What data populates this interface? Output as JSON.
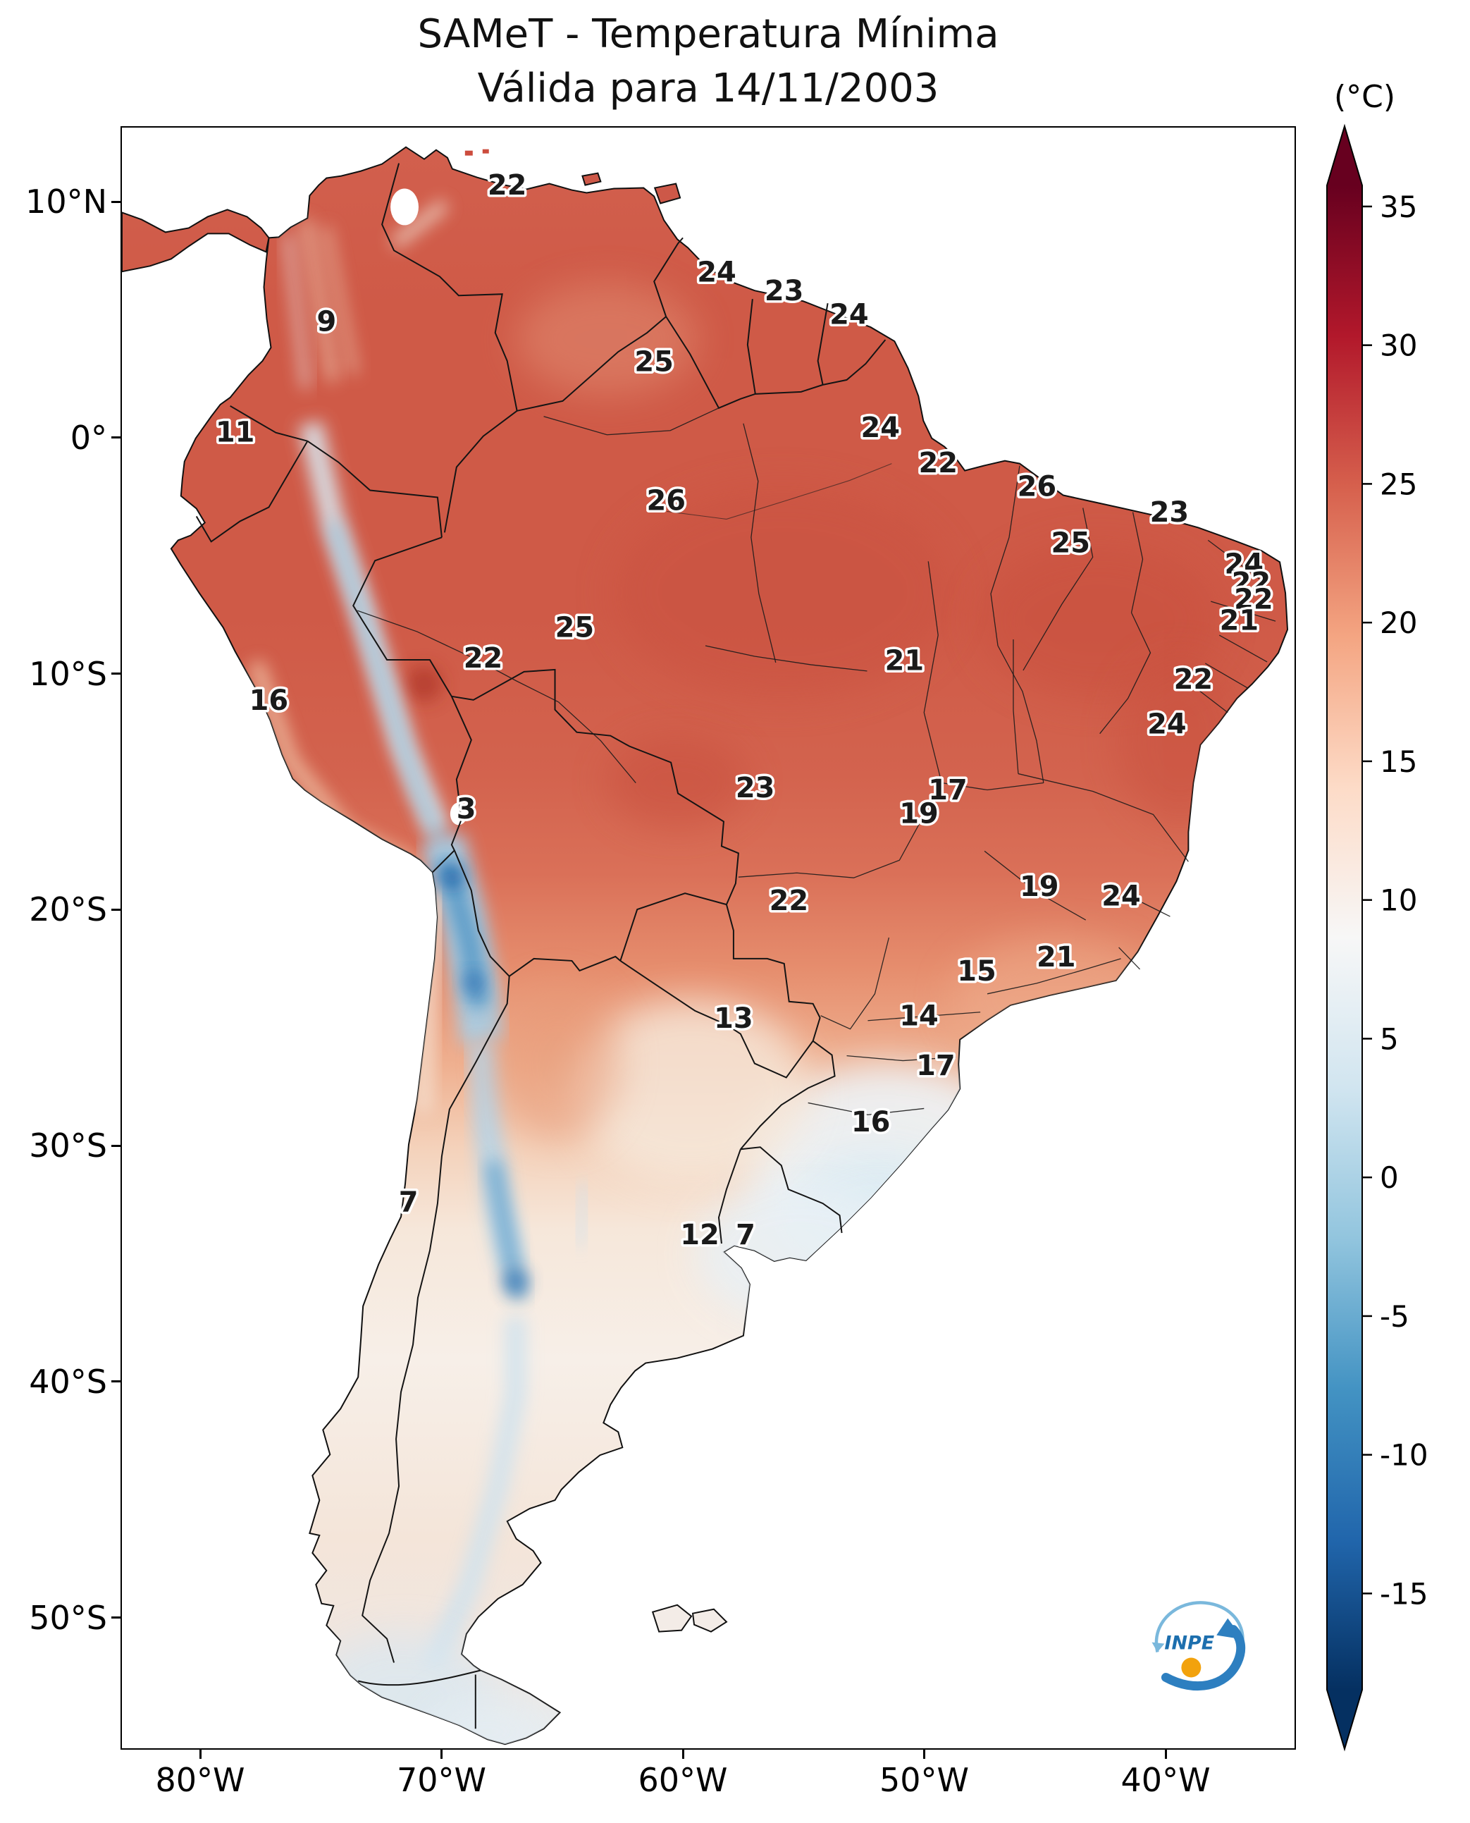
{
  "title": {
    "line1": "SAMeT - Temperatura Mínima",
    "line2": "Válida para 14/11/2003"
  },
  "colorbar": {
    "unit_label": "(°C)",
    "ticks": [
      35,
      30,
      25,
      20,
      15,
      10,
      5,
      0,
      -5,
      -10,
      -15
    ],
    "colors": [
      "#053061",
      "#2166ac",
      "#4393c3",
      "#92c5de",
      "#d1e5f0",
      "#f7f7f7",
      "#fddbc7",
      "#f4a582",
      "#d6604d",
      "#b2182b",
      "#67001f"
    ]
  },
  "axes": {
    "extent": {
      "lon_min": -83.3,
      "lon_max": -34.6,
      "lat_min": -55.6,
      "lat_max": 13.2
    },
    "lat_ticks": [
      {
        "label": "10°N",
        "value": 10
      },
      {
        "label": "0°",
        "value": 0
      },
      {
        "label": "10°S",
        "value": -10
      },
      {
        "label": "20°S",
        "value": -20
      },
      {
        "label": "30°S",
        "value": -30
      },
      {
        "label": "40°S",
        "value": -40
      },
      {
        "label": "50°S",
        "value": -50
      }
    ],
    "lon_ticks": [
      {
        "label": "80°W",
        "value": -80
      },
      {
        "label": "70°W",
        "value": -70
      },
      {
        "label": "60°W",
        "value": -60
      },
      {
        "label": "50°W",
        "value": -50
      },
      {
        "label": "40°W",
        "value": -40
      }
    ]
  },
  "map": {
    "stations": [
      {
        "value": 22,
        "lon": -67.3,
        "lat": 10.8
      },
      {
        "value": 24,
        "lon": -58.6,
        "lat": 7.1
      },
      {
        "value": 23,
        "lon": -55.8,
        "lat": 6.3
      },
      {
        "value": 24,
        "lon": -53.1,
        "lat": 5.3
      },
      {
        "value": 9,
        "lon": -74.8,
        "lat": 5.0
      },
      {
        "value": 25,
        "lon": -61.2,
        "lat": 3.3
      },
      {
        "value": 11,
        "lon": -78.6,
        "lat": 0.3
      },
      {
        "value": 24,
        "lon": -51.8,
        "lat": 0.5
      },
      {
        "value": 22,
        "lon": -49.4,
        "lat": -1.0
      },
      {
        "value": 26,
        "lon": -60.7,
        "lat": -2.6
      },
      {
        "value": 26,
        "lon": -45.3,
        "lat": -2.0
      },
      {
        "value": 23,
        "lon": -39.8,
        "lat": -3.1
      },
      {
        "value": 25,
        "lon": -43.9,
        "lat": -4.4
      },
      {
        "value": 24,
        "lon": -36.7,
        "lat": -5.3
      },
      {
        "value": 22,
        "lon": -36.4,
        "lat": -6.1
      },
      {
        "value": 22,
        "lon": -36.3,
        "lat": -6.8
      },
      {
        "value": 21,
        "lon": -36.9,
        "lat": -7.7
      },
      {
        "value": 22,
        "lon": -38.8,
        "lat": -10.2
      },
      {
        "value": 24,
        "lon": -39.9,
        "lat": -12.1
      },
      {
        "value": 16,
        "lon": -77.2,
        "lat": -11.1
      },
      {
        "value": 25,
        "lon": -64.5,
        "lat": -8.0
      },
      {
        "value": 22,
        "lon": -68.3,
        "lat": -9.3
      },
      {
        "value": 21,
        "lon": -50.8,
        "lat": -9.4
      },
      {
        "value": 3,
        "lon": -69.0,
        "lat": -15.7
      },
      {
        "value": 23,
        "lon": -57.0,
        "lat": -14.8
      },
      {
        "value": 17,
        "lon": -49.0,
        "lat": -14.9
      },
      {
        "value": 19,
        "lon": -50.2,
        "lat": -15.9
      },
      {
        "value": 22,
        "lon": -55.6,
        "lat": -19.6
      },
      {
        "value": 19,
        "lon": -45.2,
        "lat": -19.0
      },
      {
        "value": 24,
        "lon": -41.8,
        "lat": -19.4
      },
      {
        "value": 15,
        "lon": -47.8,
        "lat": -22.6
      },
      {
        "value": 21,
        "lon": -44.5,
        "lat": -22.0
      },
      {
        "value": 13,
        "lon": -57.9,
        "lat": -24.6
      },
      {
        "value": 14,
        "lon": -50.2,
        "lat": -24.5
      },
      {
        "value": 17,
        "lon": -49.5,
        "lat": -26.6
      },
      {
        "value": 16,
        "lon": -52.2,
        "lat": -29.0
      },
      {
        "value": 7,
        "lon": -71.4,
        "lat": -32.4
      },
      {
        "value": 12,
        "lon": -59.3,
        "lat": -33.8
      },
      {
        "value": 7,
        "lon": -57.4,
        "lat": -33.8
      }
    ]
  },
  "logo": {
    "text": "INPE"
  }
}
